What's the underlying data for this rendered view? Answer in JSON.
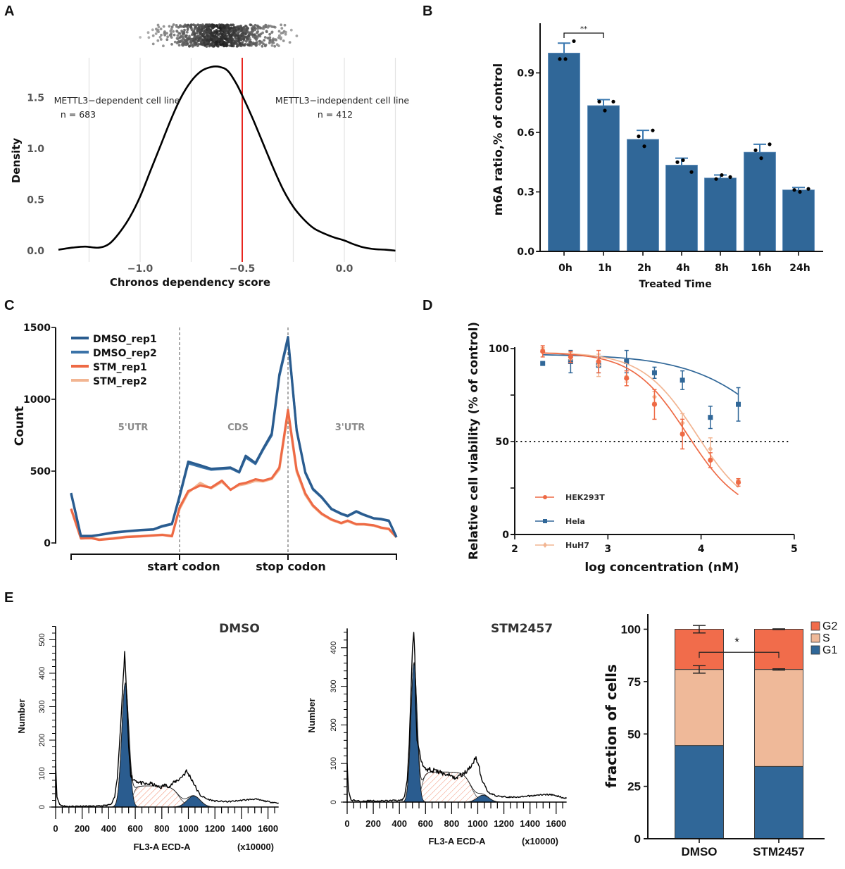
{
  "figure": {
    "panel_labels": [
      "A",
      "B",
      "C",
      "D",
      "E"
    ]
  },
  "chart_data": [
    {
      "id": "A",
      "type": "line",
      "title": "",
      "xlabel": "Chronos dependency score",
      "ylabel": "Density",
      "xlim": [
        -1.4,
        0.25
      ],
      "ylim": [
        0,
        1.8
      ],
      "xticks": [
        -1.0,
        -0.5,
        0.0
      ],
      "xtick_labels": [
        "−1.0",
        "−0.5",
        "0.0"
      ],
      "yticks": [
        0.0,
        0.5,
        1.0,
        1.5
      ],
      "ytick_labels": [
        "0.0",
        "0.5",
        "1.0",
        "1.5"
      ],
      "grid_x": [
        -1.25,
        -1.0,
        -0.75,
        -0.25,
        0.0,
        0.25
      ],
      "threshold": {
        "x": -0.5,
        "color": "#e8251f"
      },
      "annotations": [
        {
          "text": "METTL3−dependent cell line",
          "sub": "n = 683"
        },
        {
          "text": "METTL3−independent cell line",
          "sub": "n = 412"
        }
      ],
      "density": {
        "x": [
          -1.4,
          -1.33,
          -1.27,
          -1.2,
          -1.15,
          -1.1,
          -1.05,
          -1.0,
          -0.95,
          -0.9,
          -0.85,
          -0.8,
          -0.75,
          -0.7,
          -0.65,
          -0.61,
          -0.57,
          -0.53,
          -0.5,
          -0.45,
          -0.4,
          -0.35,
          -0.3,
          -0.25,
          -0.2,
          -0.15,
          -0.1,
          -0.05,
          0.0,
          0.05,
          0.1,
          0.15,
          0.2,
          0.25
        ],
        "y": [
          0.01,
          0.03,
          0.04,
          0.03,
          0.07,
          0.18,
          0.33,
          0.53,
          0.78,
          1.03,
          1.28,
          1.5,
          1.66,
          1.76,
          1.8,
          1.8,
          1.76,
          1.64,
          1.52,
          1.3,
          1.06,
          0.82,
          0.6,
          0.43,
          0.31,
          0.22,
          0.17,
          0.13,
          0.1,
          0.06,
          0.03,
          0.015,
          0.01,
          0.0
        ]
      },
      "jitter_strip": {
        "n_total": 1095,
        "center": -0.61,
        "spread": 0.22
      }
    },
    {
      "id": "B",
      "type": "bar",
      "title": "",
      "xlabel": "Treated Time",
      "ylabel": "m6A ratio,% of control",
      "categories": [
        "0h",
        "1h",
        "2h",
        "4h",
        "8h",
        "16h",
        "24h"
      ],
      "values": [
        1.0,
        0.735,
        0.565,
        0.435,
        0.37,
        0.5,
        0.31
      ],
      "errors": [
        0.05,
        0.03,
        0.045,
        0.035,
        0.015,
        0.04,
        0.012
      ],
      "points": [
        [
          0.97,
          0.97,
          1.06
        ],
        [
          0.755,
          0.71,
          0.755
        ],
        [
          0.58,
          0.53,
          0.61
        ],
        [
          0.45,
          0.46,
          0.4
        ],
        [
          0.365,
          0.385,
          0.375
        ],
        [
          0.51,
          0.47,
          0.54
        ],
        [
          0.31,
          0.3,
          0.315
        ]
      ],
      "ylim": [
        0,
        1.15
      ],
      "yticks": [
        0.0,
        0.3,
        0.6,
        0.9
      ],
      "ytick_labels": [
        "0.0",
        "0.3",
        "0.6",
        "0.9"
      ],
      "significance": {
        "from": "0h",
        "to": "1h",
        "label": "**"
      },
      "color": "#306798"
    },
    {
      "id": "C",
      "type": "line",
      "title": "",
      "xlabel": "",
      "ylabel": "Count",
      "ylim": [
        0,
        1500
      ],
      "yticks": [
        0,
        500,
        1000,
        1500
      ],
      "ytick_labels": [
        "0",
        "500",
        "1000",
        "1500"
      ],
      "x_landmarks": [
        {
          "pos": 1,
          "label": "start codon"
        },
        {
          "pos": 2,
          "label": "stop codon"
        }
      ],
      "regions": [
        "5'UTR",
        "CDS",
        "3'UTR"
      ],
      "x": [
        0.0,
        0.09,
        0.19,
        0.26,
        0.39,
        0.51,
        0.64,
        0.76,
        0.84,
        0.93,
        1.0,
        1.08,
        1.19,
        1.29,
        1.39,
        1.47,
        1.55,
        1.61,
        1.7,
        1.77,
        1.85,
        1.92,
        2.0,
        2.08,
        2.16,
        2.23,
        2.31,
        2.4,
        2.49,
        2.55,
        2.63,
        2.7,
        2.79,
        2.86,
        2.93,
        3.0
      ],
      "series": [
        {
          "name": "DMSO_rep1",
          "color": "#2a5c8f",
          "values": [
            348,
            49,
            49,
            57,
            74,
            82,
            90,
            95,
            118,
            134,
            328,
            566,
            541,
            516,
            521,
            525,
            495,
            607,
            557,
            656,
            762,
            1172,
            1434,
            787,
            492,
            377,
            320,
            238,
            205,
            189,
            221,
            197,
            172,
            167,
            156,
            41
          ]
        },
        {
          "name": "DMSO_rep2",
          "color": "#3b73a8",
          "values": [
            340,
            47,
            47,
            55,
            70,
            80,
            88,
            93,
            114,
            130,
            318,
            555,
            530,
            510,
            515,
            520,
            490,
            595,
            550,
            648,
            750,
            1160,
            1420,
            780,
            487,
            372,
            316,
            235,
            201,
            186,
            217,
            194,
            170,
            164,
            153,
            40
          ]
        },
        {
          "name": "STM_rep1",
          "color": "#ee6a45",
          "values": [
            238,
            33,
            33,
            21,
            30,
            41,
            46,
            52,
            56,
            46,
            246,
            361,
            400,
            385,
            434,
            369,
            410,
            418,
            443,
            434,
            451,
            525,
            926,
            508,
            344,
            262,
            205,
            164,
            139,
            156,
            131,
            131,
            123,
            107,
            98,
            41
          ]
        },
        {
          "name": "STM_rep2",
          "color": "#f2b592",
          "values": [
            232,
            30,
            36,
            25,
            34,
            44,
            48,
            54,
            58,
            52,
            236,
            350,
            418,
            380,
            425,
            372,
            402,
            410,
            432,
            428,
            445,
            512,
            905,
            495,
            334,
            255,
            200,
            160,
            136,
            150,
            128,
            128,
            120,
            104,
            95,
            38
          ]
        }
      ]
    },
    {
      "id": "D",
      "type": "line",
      "title": "",
      "xlabel": "log concentration (nM)",
      "ylabel": "Relative cell viability (% of control)",
      "xlim": [
        2,
        5
      ],
      "ylim": [
        0,
        100
      ],
      "xticks": [
        2,
        3,
        4,
        5
      ],
      "xtick_labels": [
        "2",
        "3",
        "4",
        "5"
      ],
      "yticks": [
        0,
        25,
        50,
        75,
        100
      ],
      "ytick_labels": [
        "0",
        "",
        "50",
        "",
        "100"
      ],
      "reference_line": {
        "y": 50,
        "style": "dotted"
      },
      "x": [
        2.3,
        2.6,
        2.9,
        3.2,
        3.5,
        3.8,
        4.1,
        4.4
      ],
      "series": [
        {
          "name": "HEK293T",
          "color": "#ee6a45",
          "marker": "circle",
          "values": [
            98.5,
            95.5,
            93,
            84,
            70,
            54,
            40,
            28
          ],
          "errors": [
            3,
            3,
            6,
            4,
            8,
            8,
            4,
            2
          ],
          "fit": {
            "top": 98,
            "bottom": 10,
            "logIC50": 3.85,
            "hill": 0.75
          }
        },
        {
          "name": "Hela",
          "color": "#306798",
          "marker": "square",
          "values": [
            92,
            93,
            91,
            93,
            87,
            83,
            63,
            70
          ],
          "errors": [
            1,
            6,
            4,
            6,
            3,
            5,
            6,
            9
          ],
          "fit": {
            "top": 97,
            "bottom": 0,
            "logIC50": 5.0,
            "hill": 0.45
          }
        },
        {
          "name": "HuH7",
          "color": "#f2b592",
          "marker": "diamond",
          "values": [
            99.5,
            96,
            91,
            85,
            74,
            60,
            46,
            29
          ],
          "errors": [
            1,
            2,
            6,
            3,
            3,
            5,
            6,
            1
          ],
          "fit": {
            "top": 98,
            "bottom": 10,
            "logIC50": 3.95,
            "hill": 0.75
          }
        }
      ]
    },
    {
      "id": "E1",
      "type": "area",
      "title": "DMSO",
      "xlabel": "FL3-A ECD-A",
      "xunit": "(x10000)",
      "ylabel": "Number",
      "xlim": [
        0,
        1680
      ],
      "ylim": [
        0,
        540
      ],
      "xticks": [
        0,
        200,
        400,
        600,
        800,
        1000,
        1200,
        1400,
        1600
      ],
      "xtick_labels": [
        "0",
        "200",
        "400",
        "600",
        "800",
        "1000",
        "1200",
        "1400",
        "1600"
      ],
      "yticks": [
        0,
        100,
        200,
        300,
        400,
        500
      ],
      "ytick_labels": [
        "0",
        "100",
        "200",
        "300",
        "400",
        "500"
      ],
      "raw": [
        [
          0,
          130
        ],
        [
          10,
          30
        ],
        [
          30,
          8
        ],
        [
          60,
          3
        ],
        [
          100,
          2
        ],
        [
          200,
          3
        ],
        [
          300,
          2
        ],
        [
          380,
          5
        ],
        [
          420,
          8
        ],
        [
          445,
          30
        ],
        [
          465,
          90
        ],
        [
          480,
          180
        ],
        [
          495,
          280
        ],
        [
          505,
          360
        ],
        [
          515,
          420
        ],
        [
          520,
          465
        ],
        [
          528,
          400
        ],
        [
          538,
          300
        ],
        [
          550,
          180
        ],
        [
          565,
          100
        ],
        [
          580,
          85
        ],
        [
          600,
          80
        ],
        [
          640,
          72
        ],
        [
          680,
          68
        ],
        [
          720,
          70
        ],
        [
          760,
          62
        ],
        [
          790,
          58
        ],
        [
          820,
          66
        ],
        [
          860,
          62
        ],
        [
          900,
          76
        ],
        [
          940,
          86
        ],
        [
          965,
          98
        ],
        [
          985,
          106
        ],
        [
          1005,
          96
        ],
        [
          1030,
          80
        ],
        [
          1060,
          55
        ],
        [
          1090,
          35
        ],
        [
          1140,
          24
        ],
        [
          1200,
          18
        ],
        [
          1300,
          16
        ],
        [
          1400,
          20
        ],
        [
          1500,
          24
        ],
        [
          1600,
          16
        ],
        [
          1680,
          12
        ]
      ],
      "components": {
        "G1": {
          "mean": 525,
          "sd": 27,
          "peak": 370,
          "color": "#2a5c8f"
        },
        "S": {
          "start": 580,
          "end": 930,
          "level": 63,
          "color": "#ee6a45"
        },
        "G2": {
          "mean": 1040,
          "sd": 50,
          "peak": 33,
          "color": "#2a5c8f"
        }
      }
    },
    {
      "id": "E2",
      "type": "area",
      "title": "STM2457",
      "xlabel": "FL3-A ECD-A",
      "xunit": "(x10000)",
      "ylabel": "Number",
      "xlim": [
        0,
        1680
      ],
      "ylim": [
        0,
        450
      ],
      "xticks": [
        0,
        200,
        400,
        600,
        800,
        1000,
        1200,
        1400,
        1600
      ],
      "xtick_labels": [
        "0",
        "200",
        "400",
        "600",
        "800",
        "1000",
        "1200",
        "1400",
        "1600"
      ],
      "yticks": [
        0,
        100,
        200,
        300,
        400
      ],
      "ytick_labels": [
        "0",
        "100",
        "200",
        "300",
        "400"
      ],
      "raw": [
        [
          0,
          100
        ],
        [
          10,
          30
        ],
        [
          30,
          5
        ],
        [
          100,
          3
        ],
        [
          300,
          3
        ],
        [
          420,
          5
        ],
        [
          440,
          15
        ],
        [
          460,
          60
        ],
        [
          475,
          150
        ],
        [
          490,
          300
        ],
        [
          500,
          400
        ],
        [
          510,
          440
        ],
        [
          518,
          380
        ],
        [
          525,
          250
        ],
        [
          535,
          160
        ],
        [
          555,
          130
        ],
        [
          580,
          95
        ],
        [
          620,
          85
        ],
        [
          700,
          78
        ],
        [
          780,
          70
        ],
        [
          830,
          62
        ],
        [
          880,
          72
        ],
        [
          920,
          80
        ],
        [
          950,
          95
        ],
        [
          980,
          118
        ],
        [
          1000,
          105
        ],
        [
          1030,
          60
        ],
        [
          1050,
          45
        ],
        [
          1080,
          25
        ],
        [
          1150,
          15
        ],
        [
          1300,
          12
        ],
        [
          1450,
          18
        ],
        [
          1550,
          20
        ],
        [
          1680,
          10
        ]
      ],
      "components": {
        "G1": {
          "mean": 512,
          "sd": 24,
          "peak": 360,
          "color": "#2a5c8f"
        },
        "S": {
          "start": 570,
          "end": 950,
          "level": 78,
          "color": "#ee6a45"
        },
        "G2": {
          "mean": 1040,
          "sd": 45,
          "peak": 18,
          "color": "#2a5c8f"
        }
      }
    },
    {
      "id": "E3",
      "type": "bar",
      "stacked": true,
      "title": "",
      "xlabel": "",
      "ylabel": "fraction of cells",
      "categories": [
        "DMSO",
        "STM2457"
      ],
      "ylim": [
        0,
        107
      ],
      "yticks": [
        0,
        25,
        50,
        75,
        100
      ],
      "ytick_labels": [
        "0",
        "25",
        "50",
        "75",
        "100"
      ],
      "series": [
        {
          "name": "G1",
          "color": "#306798",
          "values": [
            44.5,
            34.5
          ],
          "errors": [
            0.2,
            0.2
          ]
        },
        {
          "name": "S",
          "color": "#efb999",
          "values": [
            36.3,
            46.3
          ],
          "errors": [
            1.8,
            0.3
          ]
        },
        {
          "name": "G2",
          "color": "#f16c4b",
          "values": [
            19.2,
            19.2
          ],
          "errors": [
            1.8,
            0.2
          ]
        }
      ],
      "legend_order": [
        "G2",
        "S",
        "G1"
      ],
      "significance": {
        "label": "*",
        "level": 89
      }
    }
  ]
}
